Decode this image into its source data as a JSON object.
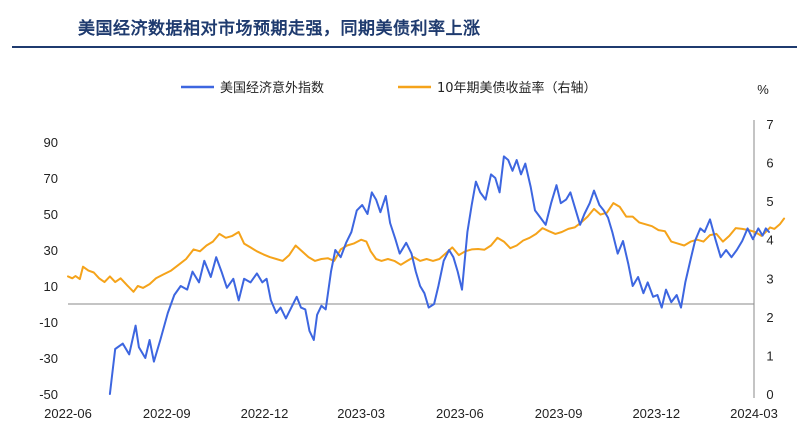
{
  "title": "美国经济数据相对市场预期走强，同期美债利率上涨",
  "chart_data": {
    "type": "line",
    "unit_right": "%",
    "x_ticks": [
      "2022-06",
      "2022-09",
      "2022-12",
      "2023-03",
      "2023-06",
      "2023-09",
      "2023-12",
      "2024-03"
    ],
    "x_range": [
      "2022-06",
      "2024-03"
    ],
    "y_left": {
      "ticks": [
        90,
        70,
        50,
        30,
        10,
        -10,
        -30,
        -50
      ],
      "min": -50,
      "max": 90
    },
    "y_right": {
      "ticks": [
        7,
        6,
        5,
        4,
        3,
        2,
        1,
        0
      ],
      "min": 0,
      "max": 7
    },
    "series": [
      {
        "name": "美国经济意外指数",
        "axis": "left",
        "color": "#3d66e0",
        "points": [
          [
            "2022-07-10",
            -50
          ],
          [
            "2022-07-12",
            -40
          ],
          [
            "2022-07-15",
            -25
          ],
          [
            "2022-07-22",
            -22
          ],
          [
            "2022-07-28",
            -28
          ],
          [
            "2022-08-03",
            -12
          ],
          [
            "2022-08-06",
            -24
          ],
          [
            "2022-08-12",
            -30
          ],
          [
            "2022-08-16",
            -20
          ],
          [
            "2022-08-20",
            -32
          ],
          [
            "2022-08-26",
            -20
          ],
          [
            "2022-09-02",
            -5
          ],
          [
            "2022-09-08",
            5
          ],
          [
            "2022-09-14",
            10
          ],
          [
            "2022-09-20",
            8
          ],
          [
            "2022-09-25",
            18
          ],
          [
            "2022-10-01",
            12
          ],
          [
            "2022-10-06",
            24
          ],
          [
            "2022-10-12",
            15
          ],
          [
            "2022-10-17",
            26
          ],
          [
            "2022-10-22",
            18
          ],
          [
            "2022-10-27",
            9
          ],
          [
            "2022-11-02",
            14
          ],
          [
            "2022-11-07",
            2
          ],
          [
            "2022-11-12",
            14
          ],
          [
            "2022-11-18",
            12
          ],
          [
            "2022-11-24",
            17
          ],
          [
            "2022-11-29",
            12
          ],
          [
            "2022-12-03",
            14
          ],
          [
            "2022-12-07",
            2
          ],
          [
            "2022-12-12",
            -5
          ],
          [
            "2022-12-16",
            -2
          ],
          [
            "2022-12-21",
            -8
          ],
          [
            "2022-12-26",
            -2
          ],
          [
            "2022-12-31",
            4
          ],
          [
            "2023-01-04",
            -2
          ],
          [
            "2023-01-08",
            -3
          ],
          [
            "2023-01-12",
            -15
          ],
          [
            "2023-01-16",
            -20
          ],
          [
            "2023-01-19",
            -6
          ],
          [
            "2023-01-23",
            -1
          ],
          [
            "2023-01-27",
            -3
          ],
          [
            "2023-02-01",
            18
          ],
          [
            "2023-02-05",
            30
          ],
          [
            "2023-02-10",
            26
          ],
          [
            "2023-02-15",
            34
          ],
          [
            "2023-02-20",
            40
          ],
          [
            "2023-02-25",
            52
          ],
          [
            "2023-03-02",
            55
          ],
          [
            "2023-03-07",
            50
          ],
          [
            "2023-03-11",
            62
          ],
          [
            "2023-03-15",
            58
          ],
          [
            "2023-03-19",
            51
          ],
          [
            "2023-03-24",
            60
          ],
          [
            "2023-03-28",
            45
          ],
          [
            "2023-04-02",
            36
          ],
          [
            "2023-04-06",
            28
          ],
          [
            "2023-04-12",
            34
          ],
          [
            "2023-04-17",
            28
          ],
          [
            "2023-04-21",
            18
          ],
          [
            "2023-04-25",
            10
          ],
          [
            "2023-04-29",
            6
          ],
          [
            "2023-05-03",
            -2
          ],
          [
            "2023-05-08",
            0
          ],
          [
            "2023-05-12",
            10
          ],
          [
            "2023-05-17",
            24
          ],
          [
            "2023-05-22",
            30
          ],
          [
            "2023-05-26",
            26
          ],
          [
            "2023-05-30",
            18
          ],
          [
            "2023-06-03",
            8
          ],
          [
            "2023-06-08",
            40
          ],
          [
            "2023-06-12",
            55
          ],
          [
            "2023-06-16",
            68
          ],
          [
            "2023-06-20",
            62
          ],
          [
            "2023-06-25",
            58
          ],
          [
            "2023-06-30",
            72
          ],
          [
            "2023-07-04",
            70
          ],
          [
            "2023-07-08",
            62
          ],
          [
            "2023-07-12",
            82
          ],
          [
            "2023-07-16",
            80
          ],
          [
            "2023-07-20",
            74
          ],
          [
            "2023-07-24",
            80
          ],
          [
            "2023-07-28",
            72
          ],
          [
            "2023-08-01",
            78
          ],
          [
            "2023-08-06",
            65
          ],
          [
            "2023-08-10",
            52
          ],
          [
            "2023-08-15",
            48
          ],
          [
            "2023-08-20",
            44
          ],
          [
            "2023-08-25",
            56
          ],
          [
            "2023-08-30",
            66
          ],
          [
            "2023-09-03",
            56
          ],
          [
            "2023-09-08",
            58
          ],
          [
            "2023-09-12",
            62
          ],
          [
            "2023-09-16",
            54
          ],
          [
            "2023-09-21",
            44
          ],
          [
            "2023-09-25",
            50
          ],
          [
            "2023-09-30",
            56
          ],
          [
            "2023-10-04",
            63
          ],
          [
            "2023-10-09",
            55
          ],
          [
            "2023-10-13",
            52
          ],
          [
            "2023-10-17",
            48
          ],
          [
            "2023-10-21",
            40
          ],
          [
            "2023-10-26",
            28
          ],
          [
            "2023-10-31",
            35
          ],
          [
            "2023-11-05",
            22
          ],
          [
            "2023-11-09",
            10
          ],
          [
            "2023-11-14",
            15
          ],
          [
            "2023-11-19",
            6
          ],
          [
            "2023-11-23",
            12
          ],
          [
            "2023-11-28",
            4
          ],
          [
            "2023-12-02",
            5
          ],
          [
            "2023-12-06",
            -2
          ],
          [
            "2023-12-10",
            8
          ],
          [
            "2023-12-15",
            1
          ],
          [
            "2023-12-20",
            5
          ],
          [
            "2023-12-24",
            -2
          ],
          [
            "2023-12-28",
            12
          ],
          [
            "2024-01-02",
            25
          ],
          [
            "2024-01-06",
            35
          ],
          [
            "2024-01-11",
            42
          ],
          [
            "2024-01-15",
            40
          ],
          [
            "2024-01-20",
            47
          ],
          [
            "2024-01-25",
            36
          ],
          [
            "2024-01-30",
            26
          ],
          [
            "2024-02-04",
            30
          ],
          [
            "2024-02-09",
            26
          ],
          [
            "2024-02-14",
            30
          ],
          [
            "2024-02-19",
            35
          ],
          [
            "2024-02-24",
            42
          ],
          [
            "2024-02-29",
            36
          ],
          [
            "2024-03-05",
            42
          ],
          [
            "2024-03-09",
            38
          ],
          [
            "2024-03-12",
            42
          ],
          [
            "2024-03-15",
            40
          ]
        ]
      },
      {
        "name": "10年期美债收益率（右轴）",
        "axis": "right",
        "color": "#f5a31a",
        "points": [
          [
            "2022-06-01",
            3.05
          ],
          [
            "2022-06-05",
            3.0
          ],
          [
            "2022-06-08",
            3.06
          ],
          [
            "2022-06-12",
            2.98
          ],
          [
            "2022-06-15",
            3.3
          ],
          [
            "2022-06-20",
            3.2
          ],
          [
            "2022-06-25",
            3.15
          ],
          [
            "2022-06-30",
            3.0
          ],
          [
            "2022-07-05",
            2.9
          ],
          [
            "2022-07-10",
            3.05
          ],
          [
            "2022-07-15",
            2.9
          ],
          [
            "2022-07-20",
            3.0
          ],
          [
            "2022-07-25",
            2.85
          ],
          [
            "2022-08-01",
            2.65
          ],
          [
            "2022-08-05",
            2.8
          ],
          [
            "2022-08-10",
            2.75
          ],
          [
            "2022-08-16",
            2.85
          ],
          [
            "2022-08-22",
            3.0
          ],
          [
            "2022-08-29",
            3.1
          ],
          [
            "2022-09-05",
            3.2
          ],
          [
            "2022-09-12",
            3.35
          ],
          [
            "2022-09-19",
            3.5
          ],
          [
            "2022-09-26",
            3.75
          ],
          [
            "2022-10-02",
            3.7
          ],
          [
            "2022-10-08",
            3.85
          ],
          [
            "2022-10-14",
            3.95
          ],
          [
            "2022-10-20",
            4.15
          ],
          [
            "2022-10-26",
            4.05
          ],
          [
            "2022-11-01",
            4.1
          ],
          [
            "2022-11-07",
            4.2
          ],
          [
            "2022-11-12",
            3.9
          ],
          [
            "2022-11-18",
            3.8
          ],
          [
            "2022-11-24",
            3.7
          ],
          [
            "2022-11-30",
            3.62
          ],
          [
            "2022-12-06",
            3.55
          ],
          [
            "2022-12-12",
            3.5
          ],
          [
            "2022-12-18",
            3.45
          ],
          [
            "2022-12-24",
            3.6
          ],
          [
            "2022-12-30",
            3.85
          ],
          [
            "2023-01-05",
            3.7
          ],
          [
            "2023-01-11",
            3.55
          ],
          [
            "2023-01-17",
            3.45
          ],
          [
            "2023-01-23",
            3.5
          ],
          [
            "2023-01-29",
            3.52
          ],
          [
            "2023-02-04",
            3.45
          ],
          [
            "2023-02-10",
            3.75
          ],
          [
            "2023-02-16",
            3.85
          ],
          [
            "2023-02-22",
            3.9
          ],
          [
            "2023-03-01",
            4.0
          ],
          [
            "2023-03-06",
            3.95
          ],
          [
            "2023-03-10",
            3.7
          ],
          [
            "2023-03-15",
            3.5
          ],
          [
            "2023-03-20",
            3.45
          ],
          [
            "2023-03-26",
            3.5
          ],
          [
            "2023-04-01",
            3.45
          ],
          [
            "2023-04-07",
            3.35
          ],
          [
            "2023-04-13",
            3.45
          ],
          [
            "2023-04-19",
            3.55
          ],
          [
            "2023-04-25",
            3.45
          ],
          [
            "2023-05-01",
            3.5
          ],
          [
            "2023-05-07",
            3.45
          ],
          [
            "2023-05-13",
            3.5
          ],
          [
            "2023-05-19",
            3.65
          ],
          [
            "2023-05-25",
            3.8
          ],
          [
            "2023-05-31",
            3.6
          ],
          [
            "2023-06-06",
            3.7
          ],
          [
            "2023-06-12",
            3.75
          ],
          [
            "2023-06-18",
            3.76
          ],
          [
            "2023-06-24",
            3.74
          ],
          [
            "2023-06-30",
            3.85
          ],
          [
            "2023-07-06",
            4.05
          ],
          [
            "2023-07-12",
            3.95
          ],
          [
            "2023-07-18",
            3.78
          ],
          [
            "2023-07-24",
            3.85
          ],
          [
            "2023-07-30",
            3.98
          ],
          [
            "2023-08-05",
            4.05
          ],
          [
            "2023-08-11",
            4.15
          ],
          [
            "2023-08-17",
            4.3
          ],
          [
            "2023-08-23",
            4.22
          ],
          [
            "2023-08-29",
            4.15
          ],
          [
            "2023-09-04",
            4.2
          ],
          [
            "2023-09-10",
            4.28
          ],
          [
            "2023-09-16",
            4.32
          ],
          [
            "2023-09-22",
            4.45
          ],
          [
            "2023-09-28",
            4.6
          ],
          [
            "2023-10-04",
            4.8
          ],
          [
            "2023-10-10",
            4.65
          ],
          [
            "2023-10-16",
            4.7
          ],
          [
            "2023-10-22",
            4.95
          ],
          [
            "2023-10-28",
            4.85
          ],
          [
            "2023-11-03",
            4.6
          ],
          [
            "2023-11-09",
            4.6
          ],
          [
            "2023-11-15",
            4.45
          ],
          [
            "2023-11-21",
            4.4
          ],
          [
            "2023-11-27",
            4.35
          ],
          [
            "2023-12-03",
            4.25
          ],
          [
            "2023-12-09",
            4.22
          ],
          [
            "2023-12-15",
            3.95
          ],
          [
            "2023-12-21",
            3.9
          ],
          [
            "2023-12-27",
            3.85
          ],
          [
            "2024-01-02",
            3.95
          ],
          [
            "2024-01-08",
            4.0
          ],
          [
            "2024-01-14",
            3.95
          ],
          [
            "2024-01-20",
            4.12
          ],
          [
            "2024-01-26",
            4.15
          ],
          [
            "2024-02-01",
            3.95
          ],
          [
            "2024-02-07",
            4.1
          ],
          [
            "2024-02-13",
            4.3
          ],
          [
            "2024-02-19",
            4.28
          ],
          [
            "2024-02-25",
            4.25
          ],
          [
            "2024-03-02",
            4.2
          ],
          [
            "2024-03-08",
            4.1
          ],
          [
            "2024-03-12",
            4.2
          ],
          [
            "2024-03-16",
            4.32
          ],
          [
            "2024-03-20",
            4.28
          ],
          [
            "2024-03-25",
            4.4
          ],
          [
            "2024-03-29",
            4.55
          ]
        ]
      }
    ]
  }
}
